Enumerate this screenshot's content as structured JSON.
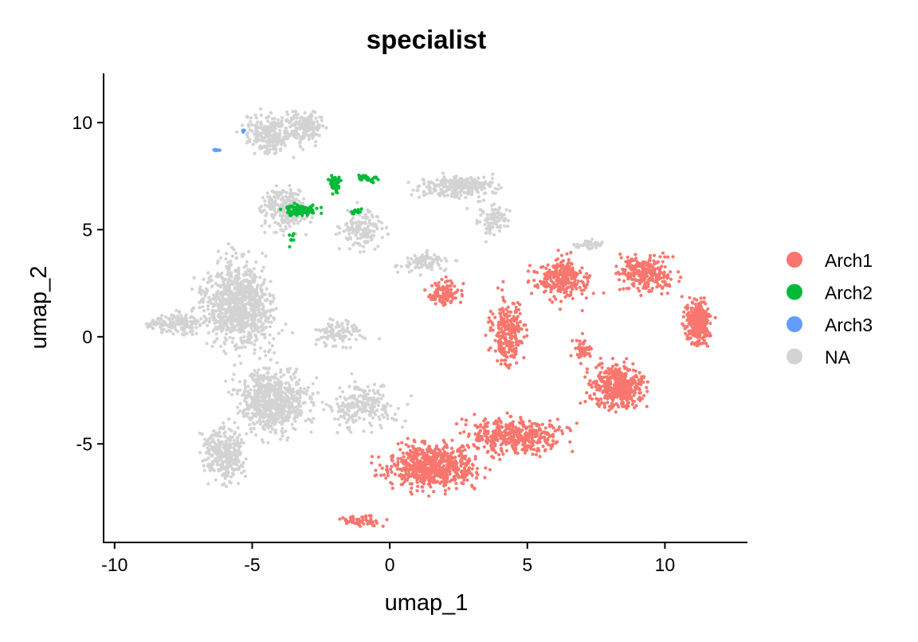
{
  "chart_data": {
    "type": "scatter",
    "title": "specialist",
    "xlabel": "umap_1",
    "ylabel": "umap_2",
    "xlim": [
      -10.4,
      13.0
    ],
    "ylim": [
      -9.6,
      12.3
    ],
    "x_ticks": [
      -10,
      -5,
      0,
      5,
      10
    ],
    "y_ticks": [
      -5,
      0,
      5,
      10
    ],
    "x_tick_labels": [
      "-10",
      "-5",
      "0",
      "5",
      "10"
    ],
    "y_tick_labels": [
      "-5",
      "0",
      "5",
      "10"
    ],
    "grid": false,
    "legend_position": "right",
    "series": [
      {
        "name": "NA",
        "color": "#d3d3d3",
        "regions": [
          {
            "center": [
              -5.5,
              1.5
            ],
            "spread": [
              1.6,
              2.4
            ],
            "count": 900
          },
          {
            "center": [
              -4.2,
              -3.0
            ],
            "spread": [
              1.6,
              1.8
            ],
            "count": 700
          },
          {
            "center": [
              -6.0,
              -5.5
            ],
            "spread": [
              0.9,
              1.6
            ],
            "count": 300
          },
          {
            "center": [
              -7.6,
              0.6
            ],
            "spread": [
              1.0,
              0.6
            ],
            "count": 120
          },
          {
            "center": [
              -4.3,
              9.5
            ],
            "spread": [
              1.2,
              1.2
            ],
            "count": 260
          },
          {
            "center": [
              -3.0,
              9.8
            ],
            "spread": [
              0.7,
              1.0
            ],
            "count": 150
          },
          {
            "center": [
              -3.8,
              6.0
            ],
            "spread": [
              1.0,
              1.3
            ],
            "count": 220
          },
          {
            "center": [
              -1.0,
              5.0
            ],
            "spread": [
              1.0,
              1.2
            ],
            "count": 140
          },
          {
            "center": [
              2.5,
              7.0
            ],
            "spread": [
              1.7,
              0.6
            ],
            "count": 260
          },
          {
            "center": [
              3.8,
              5.5
            ],
            "spread": [
              0.8,
              1.2
            ],
            "count": 90
          },
          {
            "center": [
              -1.0,
              -3.2
            ],
            "spread": [
              1.6,
              1.2
            ],
            "count": 220
          },
          {
            "center": [
              -1.8,
              0.2
            ],
            "spread": [
              1.2,
              0.8
            ],
            "count": 110
          },
          {
            "center": [
              1.2,
              3.5
            ],
            "spread": [
              1.2,
              0.6
            ],
            "count": 90
          },
          {
            "center": [
              7.3,
              4.3
            ],
            "spread": [
              0.8,
              0.3
            ],
            "count": 40
          },
          {
            "center": [
              -8.5,
              0.6
            ],
            "spread": [
              0.6,
              0.3
            ],
            "count": 30
          }
        ]
      },
      {
        "name": "Arch1",
        "color": "#f8766d",
        "regions": [
          {
            "center": [
              1.5,
              -6.0
            ],
            "spread": [
              2.0,
              1.3
            ],
            "count": 650
          },
          {
            "center": [
              4.5,
              -4.6
            ],
            "spread": [
              2.2,
              1.0
            ],
            "count": 420
          },
          {
            "center": [
              8.3,
              -2.3
            ],
            "spread": [
              1.3,
              1.3
            ],
            "count": 420
          },
          {
            "center": [
              11.2,
              0.7
            ],
            "spread": [
              0.6,
              1.2
            ],
            "count": 320
          },
          {
            "center": [
              9.3,
              3.0
            ],
            "spread": [
              1.2,
              1.0
            ],
            "count": 260
          },
          {
            "center": [
              6.3,
              2.7
            ],
            "spread": [
              1.2,
              1.2
            ],
            "count": 260
          },
          {
            "center": [
              4.3,
              0.2
            ],
            "spread": [
              0.8,
              2.0
            ],
            "count": 240
          },
          {
            "center": [
              2.0,
              2.0
            ],
            "spread": [
              0.7,
              0.8
            ],
            "count": 110
          },
          {
            "center": [
              7.0,
              -0.6
            ],
            "spread": [
              0.4,
              0.6
            ],
            "count": 50
          },
          {
            "center": [
              -1.0,
              -8.6
            ],
            "spread": [
              0.9,
              0.3
            ],
            "count": 60
          }
        ]
      },
      {
        "name": "Arch2",
        "color": "#00ba38",
        "regions": [
          {
            "center": [
              -3.2,
              5.9
            ],
            "spread": [
              0.8,
              0.3
            ],
            "count": 110
          },
          {
            "center": [
              -2.0,
              7.2
            ],
            "spread": [
              0.3,
              0.5
            ],
            "count": 50
          },
          {
            "center": [
              -0.8,
              7.4
            ],
            "spread": [
              0.7,
              0.2
            ],
            "count": 30
          },
          {
            "center": [
              -1.2,
              5.8
            ],
            "spread": [
              0.3,
              0.3
            ],
            "count": 14
          },
          {
            "center": [
              -3.5,
              4.7
            ],
            "spread": [
              0.5,
              0.5
            ],
            "count": 8
          }
        ]
      },
      {
        "name": "Arch3",
        "color": "#619cff",
        "regions": [
          {
            "center": [
              -6.3,
              8.7
            ],
            "spread": [
              0.15,
              0.07
            ],
            "count": 8
          },
          {
            "center": [
              -5.3,
              9.6
            ],
            "spread": [
              0.1,
              0.07
            ],
            "count": 6
          }
        ]
      }
    ],
    "legend": [
      {
        "label": "Arch1",
        "color": "#f8766d"
      },
      {
        "label": "Arch2",
        "color": "#00ba38"
      },
      {
        "label": "Arch3",
        "color": "#619cff"
      },
      {
        "label": "NA",
        "color": "#d3d3d3"
      }
    ]
  }
}
